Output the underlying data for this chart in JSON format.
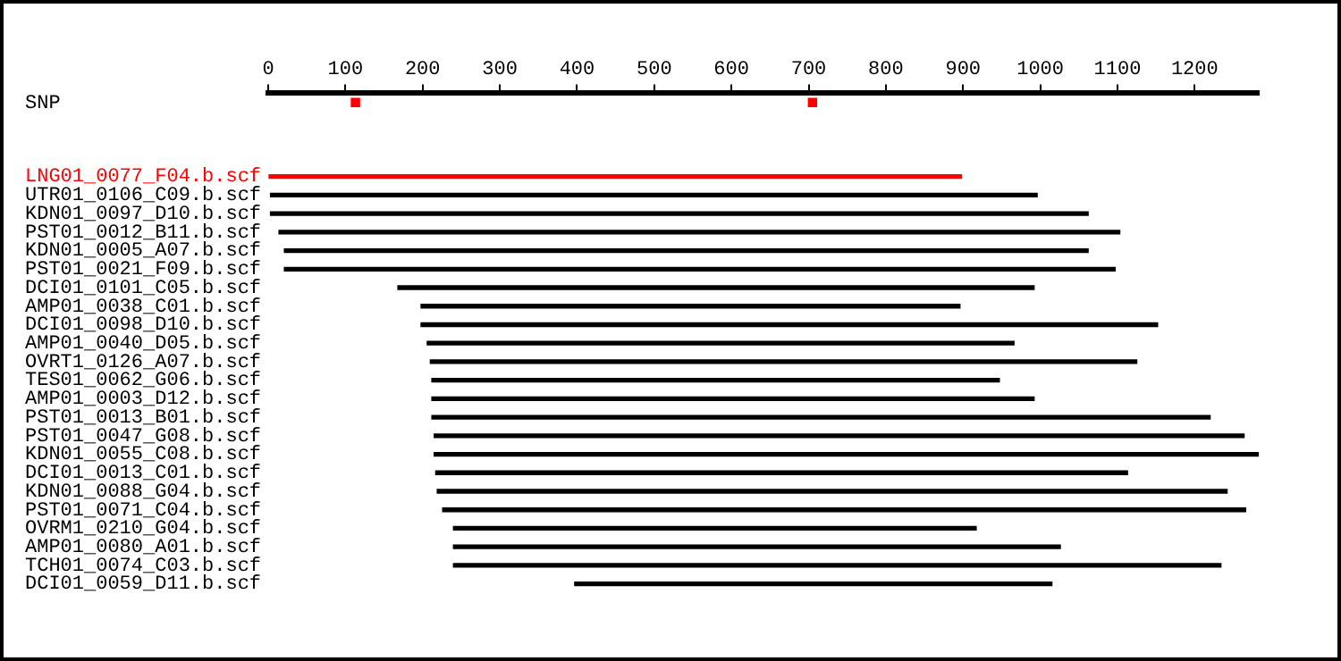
{
  "chart_data": {
    "type": "bar",
    "orientation": "horizontal",
    "categories": [
      "SNP",
      null,
      null,
      null,
      "LNG01_0077_F04.b.scf",
      "UTR01_0106_C09.b.scf",
      "KDN01_0097_D10.b.scf",
      "PST01_0012_B11.b.scf",
      "KDN01_0005_A07.b.scf",
      "PST01_0021_F09.b.scf",
      "DCI01_0101_C05.b.scf",
      "AMP01_0038_C01.b.scf",
      "DCI01_0098_D10.b.scf",
      "AMP01_0040_D05.b.scf",
      "OVRT1_0126_A07.b.scf",
      "TES01_0062_G06.b.scf",
      "AMP01_0003_D12.b.scf",
      "PST01_0013_B01.b.scf",
      "PST01_0047_G08.b.scf",
      "KDN01_0055_C08.b.scf",
      "DCI01_0013_C01.b.scf",
      "KDN01_0088_G04.b.scf",
      "PST01_0071_C04.b.scf",
      "OVRM1_0210_G04.b.scf",
      "AMP01_0080_A01.b.scf",
      "TCH01_0074_C03.b.scf",
      "DCI01_0059_D11.b.scf"
    ],
    "series": [
      {
        "base": [
          null,
          null,
          null,
          null,
          0,
          3,
          3,
          14,
          21,
          21,
          168,
          198,
          198,
          206,
          210,
          212,
          212,
          212,
          215,
          215,
          217,
          219,
          226,
          240,
          240,
          240,
          397
        ],
        "values": [
          null,
          null,
          null,
          null,
          898,
          993,
          1059,
          1089,
          1041,
          1076,
          824,
          698,
          954,
          760,
          915,
          735,
          780,
          1008,
          1049,
          1068,
          896,
          1023,
          1040,
          677,
          786,
          994,
          618
        ],
        "colors": [
          "#000000",
          "#000000",
          "#000000",
          "#000000",
          "#ff0000",
          "#000000",
          "#000000",
          "#000000",
          "#000000",
          "#000000",
          "#000000",
          "#000000",
          "#000000",
          "#000000",
          "#000000",
          "#000000",
          "#000000",
          "#000000",
          "#000000",
          "#000000",
          "#000000",
          "#000000",
          "#000000",
          "#000000",
          "#000000",
          "#000000",
          "#000000"
        ]
      },
      {
        "type": "scatter",
        "x": [
          "SNP",
          "SNP"
        ],
        "values": [
          113,
          705
        ],
        "color": "#ff0000",
        "marker": "square"
      }
    ],
    "xlim": [
      0,
      1283
    ],
    "xticks": [
      0,
      100,
      200,
      300,
      400,
      500,
      600,
      700,
      800,
      900,
      1000,
      1100,
      1200
    ],
    "grid": false,
    "legend": false
  }
}
